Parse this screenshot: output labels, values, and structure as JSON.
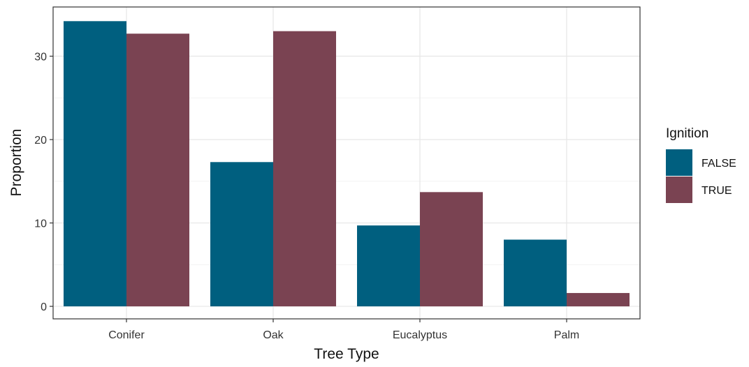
{
  "chart_data": {
    "type": "bar",
    "title": "",
    "xlabel": "Tree Type",
    "ylabel": "Proportion",
    "categories": [
      "Conifer",
      "Oak",
      "Eucalyptus",
      "Palm"
    ],
    "series": [
      {
        "name": "FALSE",
        "values": [
          34.2,
          17.3,
          9.7,
          8.0
        ],
        "color": "#005f7f"
      },
      {
        "name": "TRUE",
        "values": [
          32.7,
          33.0,
          13.7,
          1.6
        ],
        "color": "#7a4352"
      }
    ],
    "ylim": [
      -1.5,
      35.9
    ],
    "yticks": [
      0,
      10,
      20,
      30
    ],
    "ytick_labels": [
      "0",
      "10",
      "20",
      "30"
    ],
    "grid": true,
    "legend": {
      "title": "Ignition",
      "position": "right"
    }
  }
}
